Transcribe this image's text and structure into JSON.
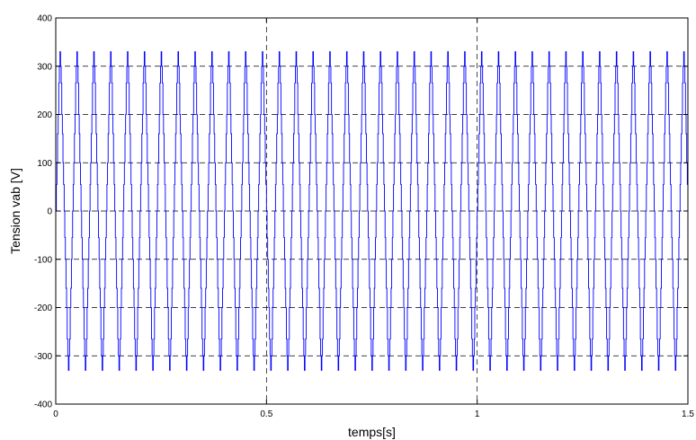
{
  "chart_data": {
    "type": "line",
    "xlabel": "temps[s]",
    "ylabel": "Tension vab [V]",
    "xlim": [
      0,
      1.5
    ],
    "ylim": [
      -400,
      400
    ],
    "xticks": [
      0,
      0.5,
      1,
      1.5
    ],
    "xtick_labels": [
      "0",
      "0.5",
      "1",
      "1.5"
    ],
    "yticks": [
      -400,
      -300,
      -200,
      -100,
      0,
      100,
      200,
      300,
      400
    ],
    "ytick_labels": [
      "-400",
      "-300",
      "-200",
      "-100",
      "0",
      "100",
      "200",
      "300",
      "400"
    ],
    "grid": true,
    "series": [
      {
        "color": "#0000ff",
        "waveform": "multilevel PWM line-to-line voltage",
        "amplitude": 330,
        "levels": [
          -330,
          -300,
          -265,
          -200,
          -160,
          -100,
          -55,
          0,
          55,
          100,
          160,
          200,
          265,
          300,
          330
        ],
        "oscillations": 75,
        "x_start": 0,
        "x_end": 1.5
      }
    ]
  }
}
